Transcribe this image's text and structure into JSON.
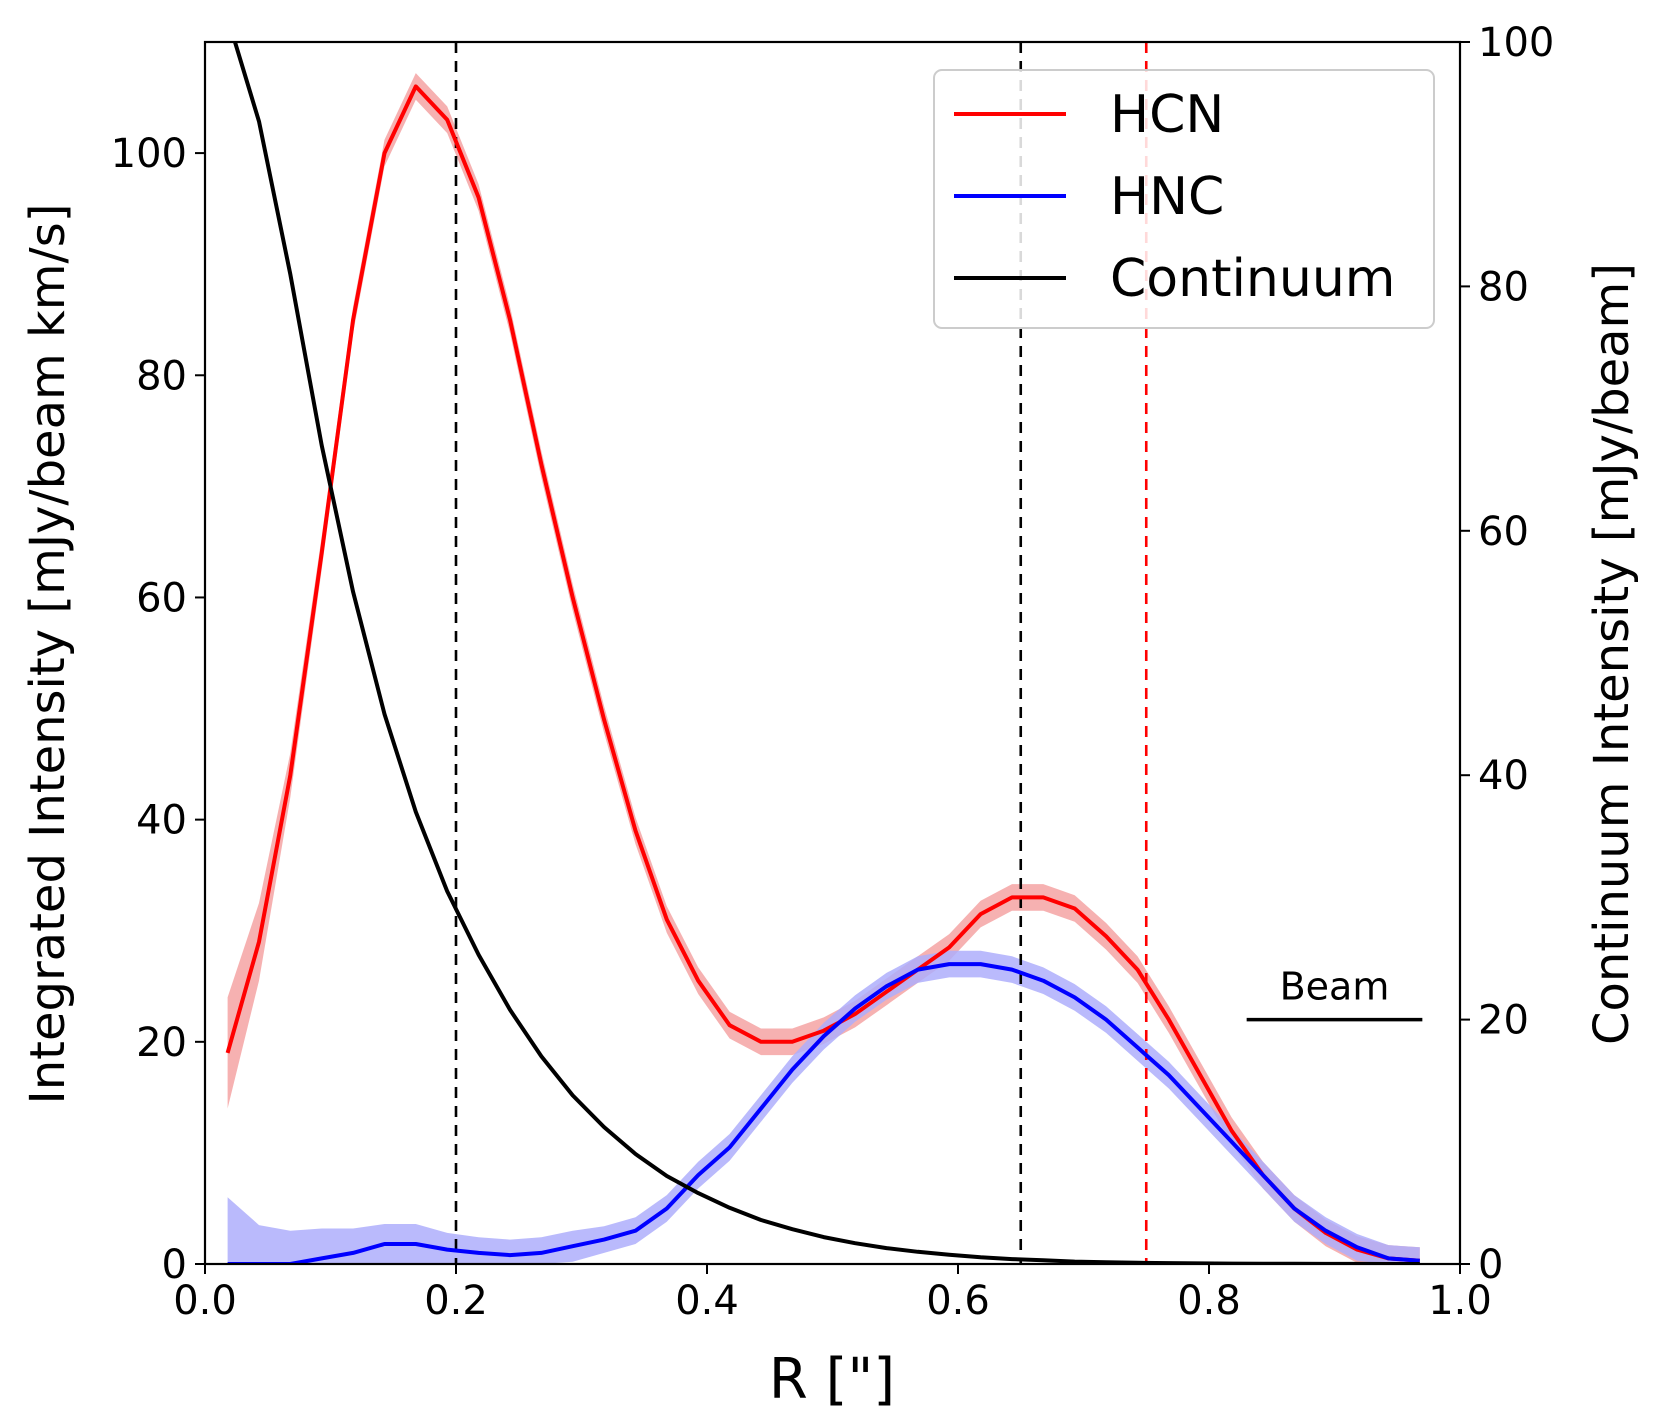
{
  "chart_data": {
    "type": "line",
    "xlabel": "R [\"]",
    "ylabel": "Integrated Intensity [mJy/beam km/s]",
    "ylabel_right": "Continuum Intensity [mJy/beam]",
    "xlim": [
      0.0,
      1.0
    ],
    "ylim": [
      0,
      110
    ],
    "ylim_right": [
      0,
      100
    ],
    "xticks": [
      "0.0",
      "0.2",
      "0.4",
      "0.6",
      "0.8",
      "1.0"
    ],
    "yticks": [
      "0",
      "20",
      "40",
      "60",
      "80",
      "100"
    ],
    "yticks_right": [
      "0",
      "20",
      "40",
      "60",
      "80",
      "100"
    ],
    "grid": false,
    "legend": {
      "position": "top-right",
      "entries": [
        "HCN",
        "HNC",
        "Continuum"
      ]
    },
    "series": [
      {
        "name": "HCN",
        "axis": "left",
        "color": "#ff0000",
        "band_color": "#f4a3a3",
        "x": [
          0.018,
          0.043,
          0.068,
          0.093,
          0.118,
          0.143,
          0.168,
          0.193,
          0.218,
          0.243,
          0.268,
          0.293,
          0.318,
          0.343,
          0.368,
          0.393,
          0.418,
          0.443,
          0.468,
          0.493,
          0.518,
          0.543,
          0.568,
          0.593,
          0.618,
          0.643,
          0.668,
          0.693,
          0.718,
          0.743,
          0.768,
          0.793,
          0.818,
          0.843,
          0.868,
          0.893,
          0.918,
          0.943,
          0.968
        ],
        "y": [
          19,
          29,
          44,
          64,
          85,
          100,
          106,
          103,
          96,
          85,
          72,
          60,
          49,
          39,
          31,
          25.5,
          21.5,
          20,
          20,
          21,
          22.5,
          24.5,
          26.5,
          28.5,
          31.5,
          33,
          33,
          32,
          29.5,
          26.5,
          22,
          17,
          12,
          8,
          5,
          2.8,
          1.3,
          0.5,
          0.3
        ],
        "band": [
          5,
          3.5,
          2,
          1.5,
          1.2,
          1.2,
          1.2,
          1.2,
          1.2,
          1.2,
          1.2,
          1.2,
          1.2,
          1.2,
          1.2,
          1.2,
          1.2,
          1.2,
          1.2,
          1.2,
          1.2,
          1.2,
          1.2,
          1.2,
          1.2,
          1.2,
          1.2,
          1.2,
          1.2,
          1.2,
          1.2,
          1.2,
          1.2,
          1.2,
          1.2,
          1.2,
          1.2,
          1.2,
          1.2
        ]
      },
      {
        "name": "HNC",
        "axis": "left",
        "color": "#0000ff",
        "band_color": "#aeaefc",
        "x": [
          0.018,
          0.043,
          0.068,
          0.093,
          0.118,
          0.143,
          0.168,
          0.193,
          0.218,
          0.243,
          0.268,
          0.293,
          0.318,
          0.343,
          0.368,
          0.393,
          0.418,
          0.443,
          0.468,
          0.493,
          0.518,
          0.543,
          0.568,
          0.593,
          0.618,
          0.643,
          0.668,
          0.693,
          0.718,
          0.743,
          0.768,
          0.793,
          0.818,
          0.843,
          0.868,
          0.893,
          0.918,
          0.943,
          0.968
        ],
        "y": [
          0,
          0,
          0,
          0.5,
          1,
          1.8,
          1.8,
          1.3,
          1,
          0.8,
          1,
          1.6,
          2.2,
          3,
          5,
          8,
          10.5,
          14,
          17.5,
          20.5,
          23,
          25,
          26.5,
          27,
          27,
          26.5,
          25.5,
          24,
          22,
          19.5,
          17,
          14,
          11,
          8,
          5,
          3,
          1.5,
          0.5,
          0.3
        ],
        "band": [
          6,
          3.5,
          3,
          2.7,
          2.2,
          1.8,
          1.8,
          1.5,
          1.4,
          1.4,
          1.4,
          1.4,
          1.2,
          1.2,
          1.2,
          1.2,
          1.2,
          1.2,
          1.2,
          1.2,
          1.2,
          1.2,
          1.2,
          1.2,
          1.2,
          1.2,
          1.2,
          1.2,
          1.2,
          1.2,
          1.2,
          1.2,
          1.2,
          1.2,
          1.2,
          1.2,
          1.2,
          1.2,
          1.2
        ]
      },
      {
        "name": "Continuum",
        "axis": "right",
        "color": "#000000",
        "x": [
          0.018,
          0.043,
          0.068,
          0.093,
          0.118,
          0.143,
          0.168,
          0.193,
          0.218,
          0.243,
          0.268,
          0.293,
          0.318,
          0.343,
          0.368,
          0.393,
          0.418,
          0.443,
          0.468,
          0.493,
          0.518,
          0.543,
          0.568,
          0.593,
          0.618,
          0.643,
          0.668,
          0.693,
          0.718,
          0.743,
          0.768,
          0.793,
          0.818,
          0.843,
          0.868,
          0.893,
          0.918,
          0.943,
          0.968
        ],
        "y": [
          102,
          93.5,
          81,
          67,
          55,
          45,
          37,
          30.5,
          25.3,
          20.8,
          17,
          13.8,
          11.2,
          9,
          7.2,
          5.8,
          4.6,
          3.6,
          2.85,
          2.2,
          1.7,
          1.3,
          1,
          0.75,
          0.55,
          0.4,
          0.3,
          0.2,
          0.15,
          0.1,
          0.07,
          0.05,
          0.03,
          0.02,
          0.015,
          0.01,
          0.005,
          0.003,
          0.002
        ]
      }
    ],
    "vlines": [
      {
        "x": 0.2,
        "color": "#000000",
        "style": "dashed"
      },
      {
        "x": 0.65,
        "color": "#000000",
        "style": "dashed"
      },
      {
        "x": 0.75,
        "color": "#ff0000",
        "style": "dashed"
      }
    ],
    "beam": {
      "label": "Beam",
      "x": [
        0.83,
        0.97
      ],
      "y": 22
    }
  }
}
